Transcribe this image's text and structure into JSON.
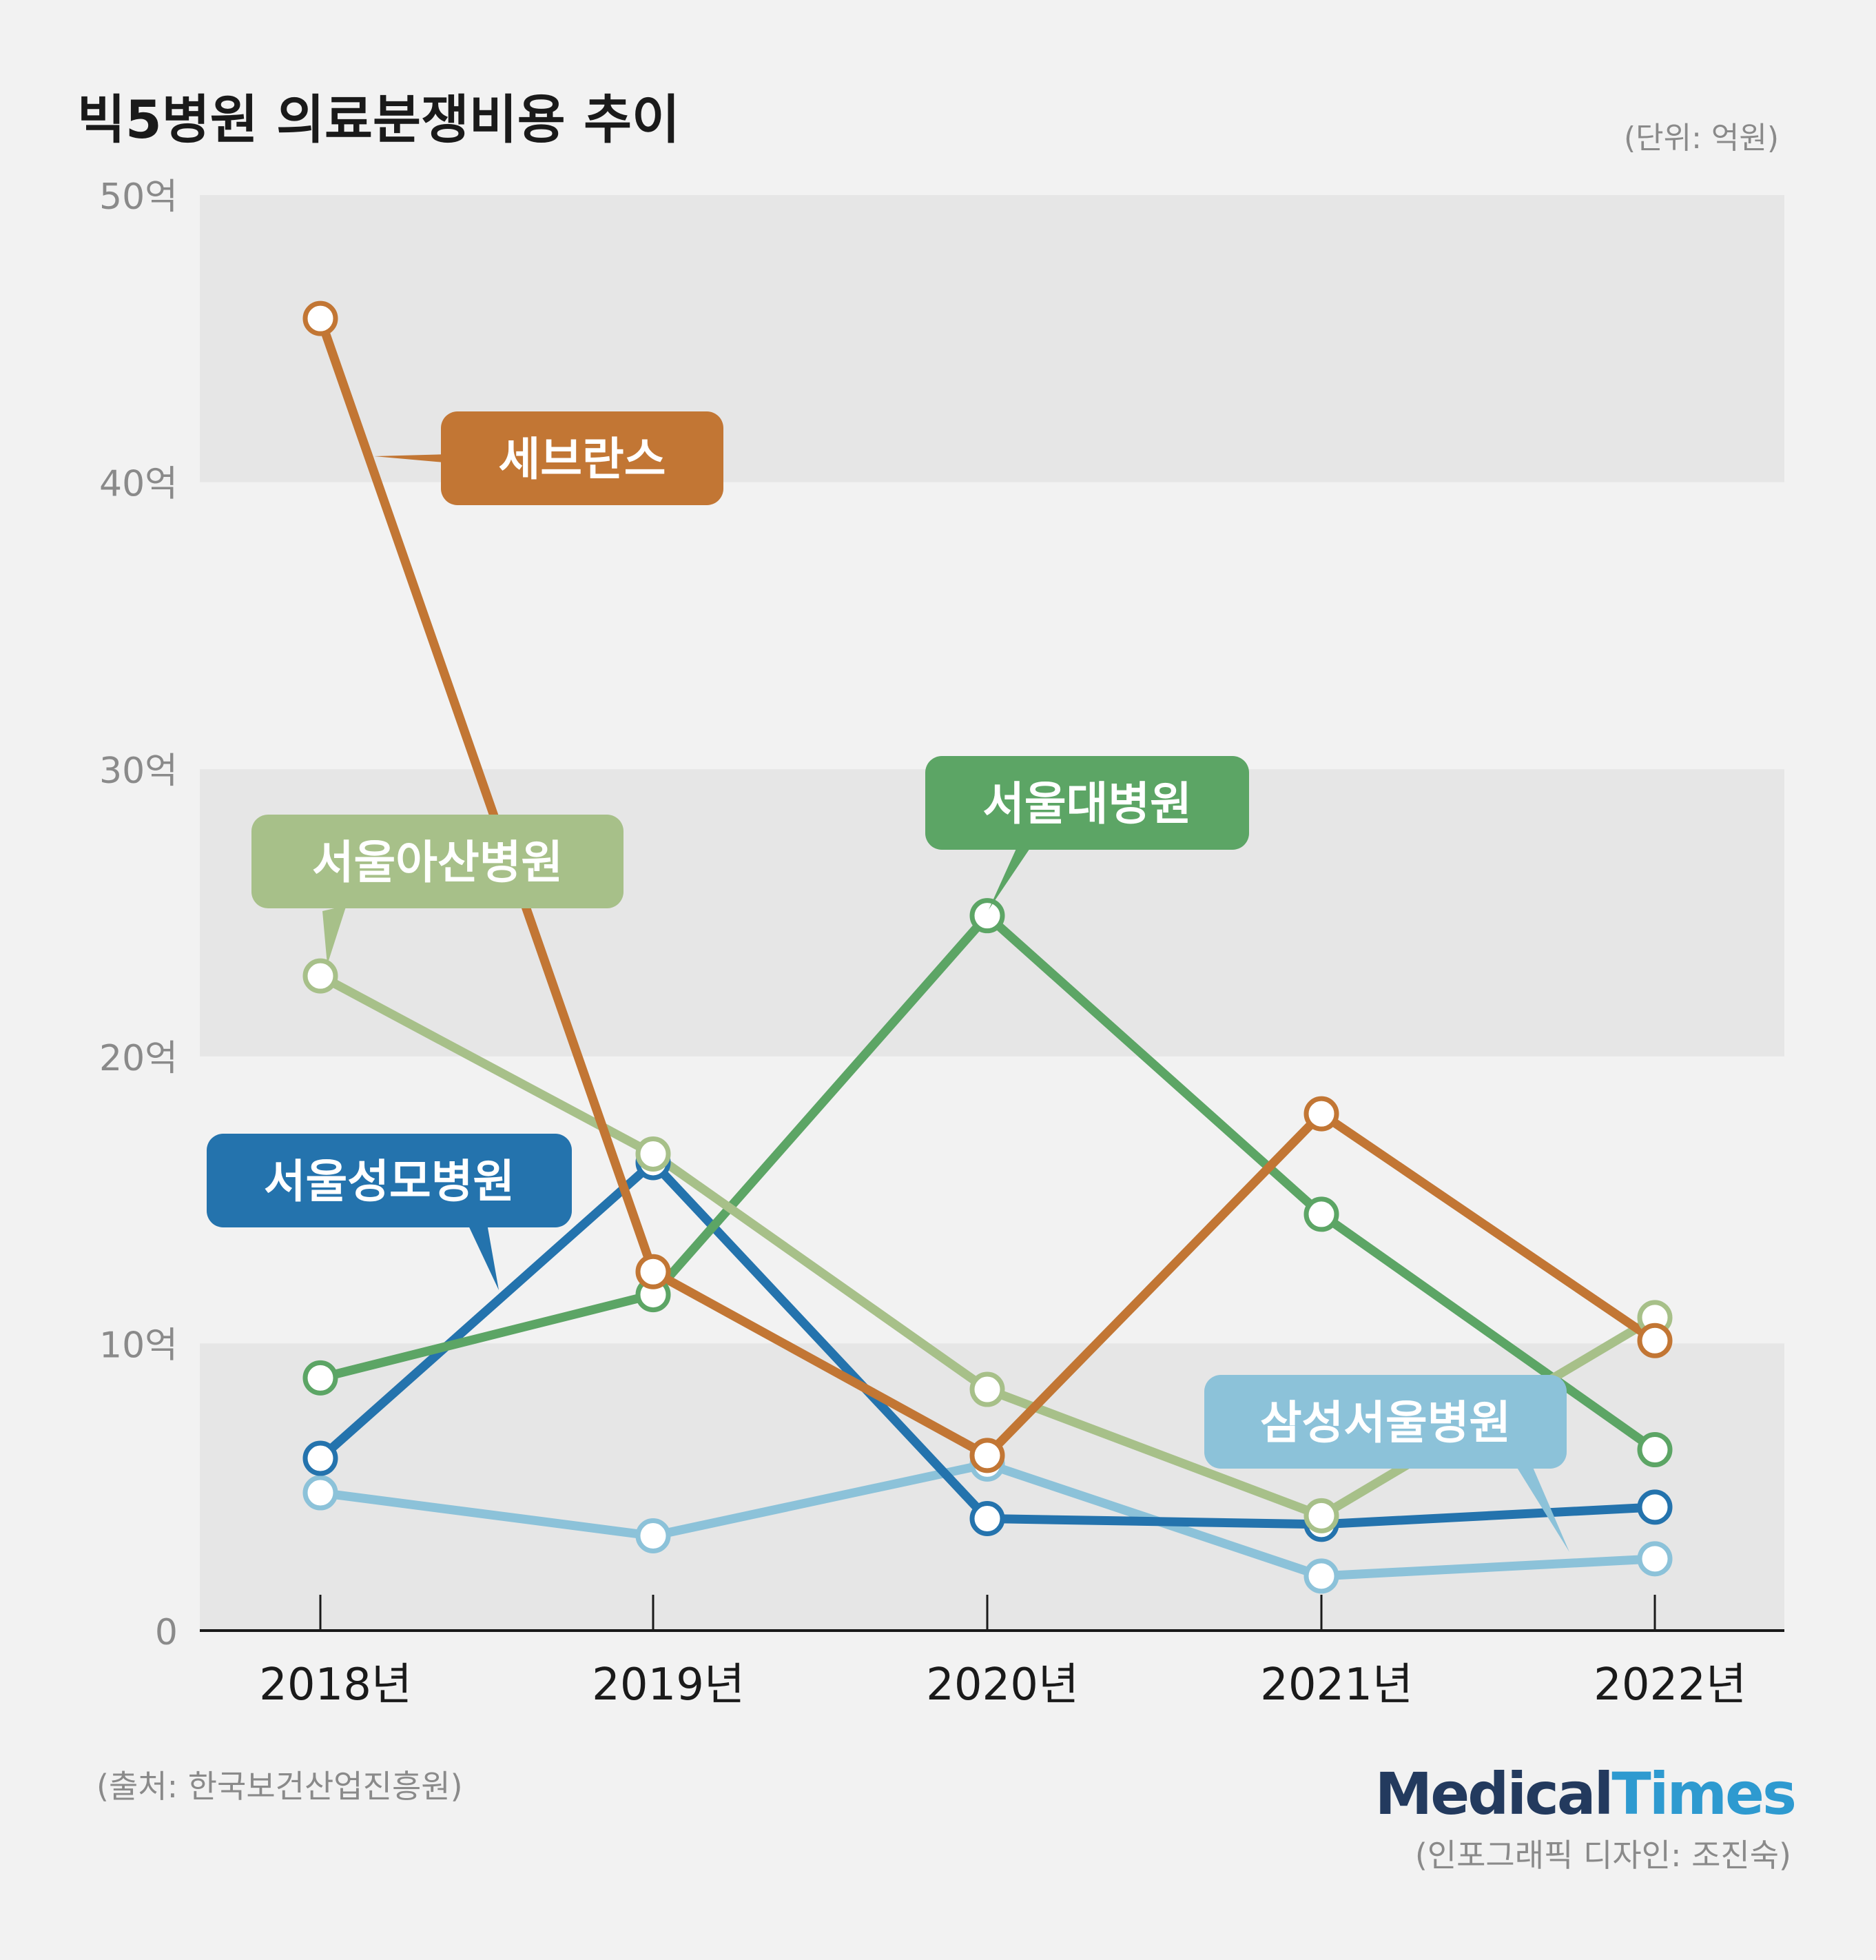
{
  "title": "빅5병원 의료분쟁비용 추이",
  "unit": "(단위: 억원)",
  "source": "(출처: 한국보건산업진흥원)",
  "credit": "(인포그래픽 디자인: 조진숙)",
  "logo": {
    "part1": "Medical",
    "part2": "Times"
  },
  "colors": {
    "background": "#f2f2f2",
    "band": "#e6e6e6",
    "severance": "#c27634",
    "asan": "#a7c089",
    "snuh": "#5ca565",
    "stmary": "#2473ad",
    "samsung": "#8cc2d9"
  },
  "chart_data": {
    "type": "line",
    "title": "빅5병원 의료분쟁비용 추이",
    "unit_label": "(단위: 억원)",
    "categories": [
      "2018년",
      "2019년",
      "2020년",
      "2021년",
      "2022년"
    ],
    "ylim": [
      0,
      50
    ],
    "yticks": [
      0,
      10,
      20,
      30,
      40,
      50
    ],
    "ytick_labels": [
      "0",
      "10억",
      "20억",
      "30억",
      "40억",
      "50억"
    ],
    "grid": "alternating horizontal bands",
    "series": [
      {
        "name": "삼성서울병원",
        "color": "#8cc2d9",
        "values": [
          4.8,
          3.3,
          5.8,
          1.9,
          2.5
        ]
      },
      {
        "name": "서울성모병원",
        "color": "#2473ad",
        "values": [
          6.0,
          16.3,
          3.9,
          3.7,
          4.3
        ]
      },
      {
        "name": "서울대병원",
        "color": "#5ca565",
        "values": [
          8.8,
          11.7,
          24.9,
          14.5,
          6.3
        ]
      },
      {
        "name": "서울아산병원",
        "color": "#a7c089",
        "values": [
          22.8,
          16.6,
          8.4,
          4.0,
          10.9
        ]
      },
      {
        "name": "세브란스",
        "color": "#c27634",
        "values": [
          45.7,
          12.5,
          6.1,
          18.0,
          10.1
        ]
      }
    ]
  }
}
